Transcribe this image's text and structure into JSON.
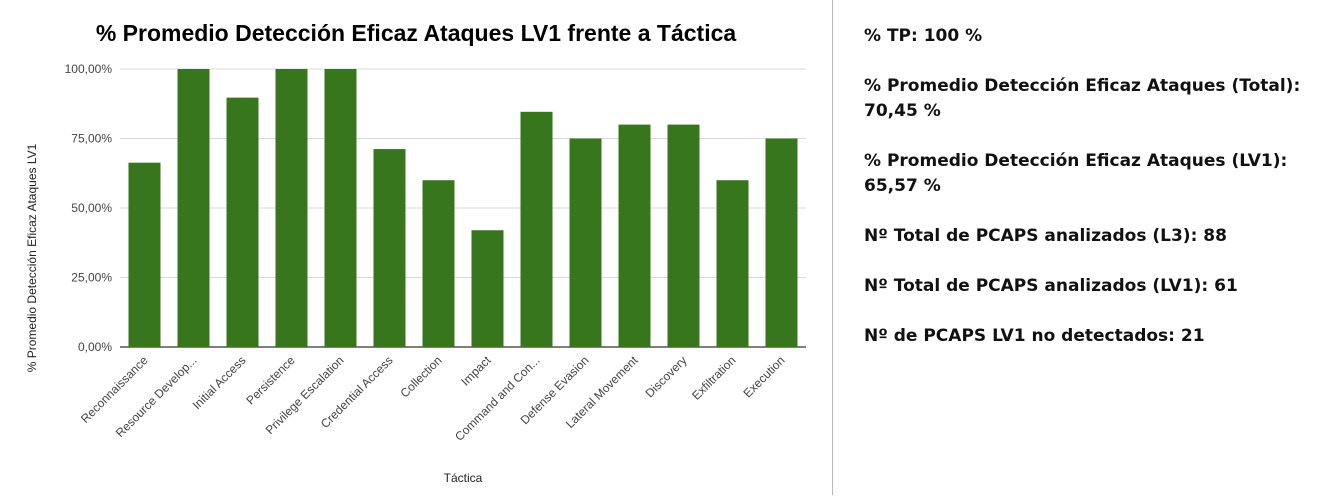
{
  "chart_data": {
    "type": "bar",
    "title": "% Promedio Detección Eficaz Ataques LV1 frente a Táctica",
    "xlabel": "Táctica",
    "ylabel": "% Promedio Detección Eficaz Ataques LV1",
    "categories": [
      "Reconnaissance",
      "Resource Develop...",
      "Initial Access",
      "Persistence",
      "Privilege Escalation",
      "Credential Access",
      "Collection",
      "Impact",
      "Command and Con...",
      "Defense Evasion",
      "Lateral Movement",
      "Discovery",
      "Exfiltration",
      "Execution"
    ],
    "values": [
      66.3,
      100,
      89.7,
      100,
      100,
      71.2,
      60,
      42,
      84.6,
      75,
      80,
      80,
      60,
      75
    ],
    "ylim": [
      0,
      100
    ],
    "yticks": [
      "0,00%",
      "25,00%",
      "50,00%",
      "75,00%",
      "100,00%"
    ],
    "grid": true,
    "colors": {
      "bar": "#38761d",
      "grid": "#d9d9d9",
      "axis": "#333333"
    }
  },
  "stats": {
    "tp": "% TP: 100 %",
    "avg_total": "% Promedio Detección Eficaz Ataques (Total): 70,45 %",
    "avg_lv1": "% Promedio Detección Eficaz Ataques (LV1): 65,57 %",
    "total_l3": "Nº Total de PCAPS analizados (L3): 88",
    "total_lv1": "Nº Total de PCAPS analizados (LV1): 61",
    "not_detected": "Nº de PCAPS LV1 no detectados: 21"
  }
}
